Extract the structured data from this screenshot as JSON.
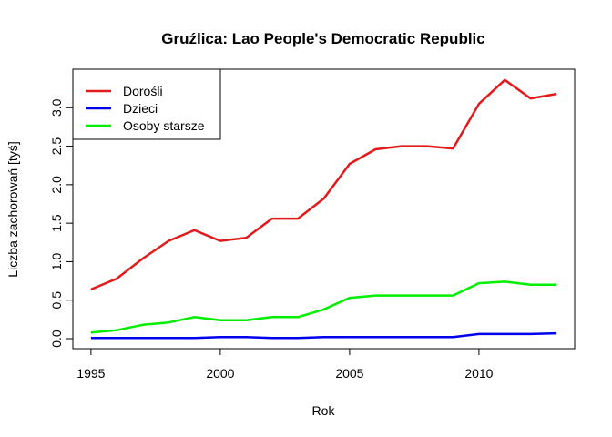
{
  "chart_data": {
    "type": "line",
    "title": "Gruźlica: Lao People's Democratic Republic",
    "xlabel": "Rok",
    "ylabel": "Liczba zachorowań [tyś]",
    "xlim": [
      1994.3,
      2013.7
    ],
    "ylim": [
      -0.13,
      3.5
    ],
    "x_ticks": [
      1995,
      2000,
      2005,
      2010
    ],
    "y_ticks": [
      0.0,
      0.5,
      1.0,
      1.5,
      2.0,
      2.5,
      3.0
    ],
    "y_tick_labels": [
      "0.0",
      "0.5",
      "1.0",
      "1.5",
      "2.0",
      "2.5",
      "3.0"
    ],
    "grid": false,
    "legend_position": "top-left",
    "x": [
      1995,
      1996,
      1997,
      1998,
      1999,
      2000,
      2001,
      2002,
      2003,
      2004,
      2005,
      2006,
      2007,
      2008,
      2009,
      2010,
      2011,
      2012,
      2013
    ],
    "series": [
      {
        "name": "Dorośli",
        "color": "#e31a1c",
        "values": [
          0.64,
          0.78,
          1.04,
          1.27,
          1.41,
          1.27,
          1.31,
          1.56,
          1.56,
          1.82,
          2.27,
          2.46,
          2.5,
          2.5,
          2.47,
          3.05,
          3.36,
          3.12,
          3.18
        ]
      },
      {
        "name": "Dzieci",
        "color": "#0000ee",
        "values": [
          0.01,
          0.01,
          0.01,
          0.01,
          0.01,
          0.02,
          0.02,
          0.01,
          0.01,
          0.02,
          0.02,
          0.02,
          0.02,
          0.02,
          0.02,
          0.06,
          0.06,
          0.06,
          0.07
        ]
      },
      {
        "name": "Osoby starsze",
        "color": "#00ee00",
        "values": [
          0.08,
          0.11,
          0.18,
          0.21,
          0.28,
          0.24,
          0.24,
          0.28,
          0.28,
          0.38,
          0.53,
          0.56,
          0.56,
          0.56,
          0.56,
          0.72,
          0.74,
          0.7,
          0.7
        ]
      }
    ]
  }
}
